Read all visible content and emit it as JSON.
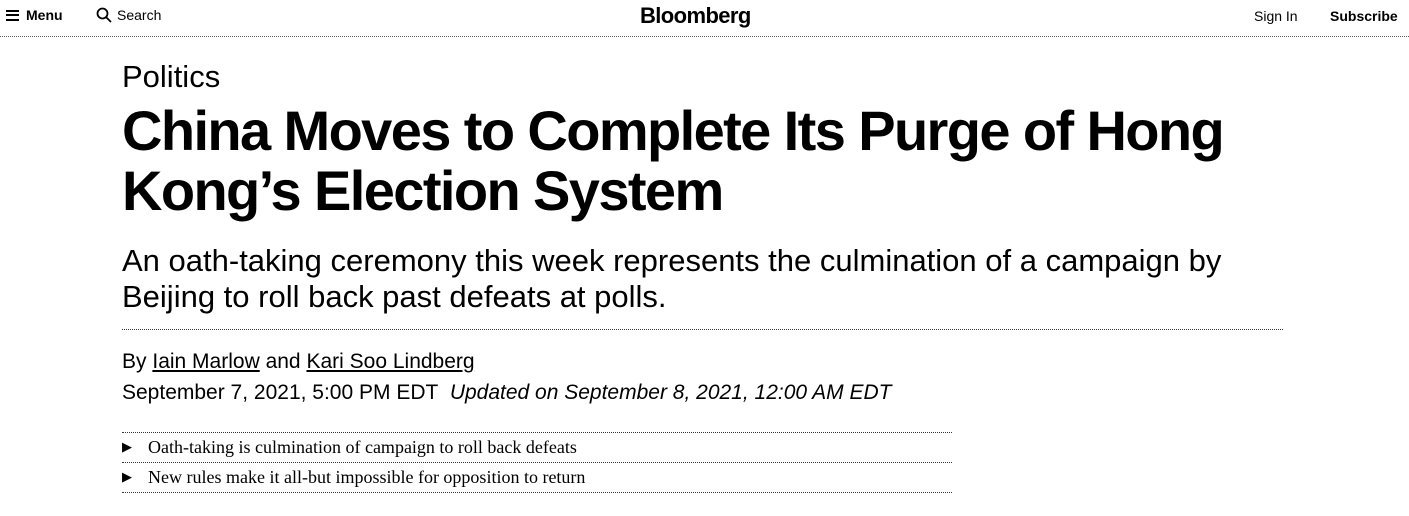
{
  "nav": {
    "menu_label": "Menu",
    "search_label": "Search",
    "logo": "Bloomberg",
    "signin_label": "Sign In",
    "subscribe_label": "Subscribe"
  },
  "article": {
    "section": "Politics",
    "headline": "China Moves to Complete Its Purge of Hong Kong’s Election System",
    "dek": "An oath-taking ceremony this week represents the culmination of a campaign by Beijing to roll back past defeats at polls.",
    "byline": {
      "prefix": "By",
      "authors": [
        "Iain Marlow",
        "Kari Soo Lindberg"
      ],
      "conjunction": "and"
    },
    "published": "September 7, 2021, 5:00 PM EDT",
    "updated": "Updated on September 8, 2021, 12:00 AM EDT",
    "bullets": [
      "Oath-taking is culmination of campaign to roll back defeats",
      "New rules make it all-but impossible for opposition to return"
    ],
    "bullet_glyph": "▶"
  }
}
